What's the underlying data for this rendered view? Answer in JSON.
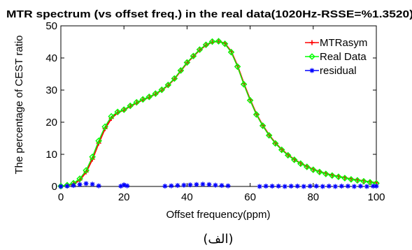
{
  "chart_data": {
    "type": "line",
    "title": "MTR spectrum (vs offset freq.) in the real data(1020Hz-RSSE=%1.3520)",
    "xlabel": "Offset frequency(ppm)",
    "ylabel": "The percentage of CEST ratio",
    "xlim": [
      0,
      100
    ],
    "ylim": [
      0,
      50
    ],
    "xticks": [
      0,
      20,
      40,
      60,
      80,
      100
    ],
    "yticks": [
      0,
      10,
      20,
      30,
      40,
      50
    ],
    "grid": false,
    "legend_position": "top-right",
    "series": [
      {
        "name": "MTRasym",
        "color": "#ff0000",
        "marker": "plus",
        "x": [
          0,
          2,
          4,
          6,
          8,
          10,
          12,
          14,
          16,
          18,
          20,
          22,
          24,
          26,
          28,
          30,
          32,
          34,
          36,
          38,
          40,
          42,
          44,
          46,
          48,
          50,
          52,
          54,
          56,
          58,
          60,
          62,
          64,
          66,
          68,
          70,
          72,
          74,
          76,
          78,
          80,
          82,
          84,
          86,
          88,
          90,
          92,
          94,
          96,
          98,
          100
        ],
        "y": [
          0.1,
          0.3,
          0.8,
          2.0,
          4.5,
          8.5,
          13.5,
          18.0,
          21.2,
          23.0,
          23.8,
          25.0,
          26.0,
          27.0,
          27.8,
          28.8,
          30.0,
          31.5,
          33.5,
          36.0,
          38.5,
          40.5,
          42.5,
          44.0,
          45.0,
          45.2,
          44.5,
          42.0,
          37.5,
          32.0,
          27.0,
          22.5,
          19.0,
          16.0,
          13.5,
          11.5,
          9.8,
          8.4,
          7.2,
          6.2,
          5.3,
          4.6,
          4.0,
          3.5,
          3.1,
          2.7,
          2.3,
          2.0,
          1.7,
          1.4,
          1.1
        ]
      },
      {
        "name": "Real Data",
        "color": "#00ff00",
        "marker": "diamond",
        "x": [
          0,
          2,
          4,
          6,
          8,
          10,
          12,
          14,
          16,
          18,
          20,
          22,
          24,
          26,
          28,
          30,
          32,
          34,
          36,
          38,
          40,
          42,
          44,
          46,
          48,
          50,
          52,
          54,
          56,
          58,
          60,
          62,
          64,
          66,
          68,
          70,
          72,
          74,
          76,
          78,
          80,
          82,
          84,
          86,
          88,
          90,
          92,
          94,
          96,
          98,
          100
        ],
        "y": [
          0.1,
          0.4,
          1.0,
          2.4,
          5.0,
          9.2,
          14.2,
          18.6,
          21.8,
          23.2,
          23.9,
          25.1,
          26.2,
          27.1,
          27.9,
          28.9,
          30.1,
          31.6,
          33.6,
          36.1,
          38.6,
          40.6,
          42.6,
          44.1,
          45.1,
          45.2,
          44.4,
          41.8,
          37.3,
          31.8,
          26.8,
          22.4,
          18.9,
          15.9,
          13.4,
          11.4,
          9.7,
          8.3,
          7.1,
          6.1,
          5.2,
          4.5,
          3.9,
          3.4,
          3.0,
          2.6,
          2.2,
          1.9,
          1.6,
          1.3,
          1.0
        ]
      },
      {
        "name": "residual",
        "color": "#0000ff",
        "marker": "star",
        "x": [
          0,
          2,
          4,
          6,
          8,
          10,
          12,
          19,
          20,
          21,
          33,
          35,
          37,
          39,
          41,
          43,
          45,
          47,
          49,
          51,
          53,
          63,
          65,
          67,
          69,
          71,
          73,
          75,
          77,
          79,
          81,
          83,
          85,
          87,
          89,
          91,
          93,
          95,
          97,
          99,
          100
        ],
        "y": [
          0.0,
          0.1,
          0.3,
          0.6,
          0.9,
          0.7,
          0.2,
          0.1,
          0.5,
          0.2,
          0.1,
          0.2,
          0.3,
          0.4,
          0.5,
          0.6,
          0.7,
          0.6,
          0.4,
          0.3,
          0.2,
          0.0,
          0.1,
          0.1,
          0.1,
          0.0,
          0.1,
          0.1,
          0.0,
          0.1,
          0.1,
          0.0,
          0.1,
          0.0,
          0.1,
          0.1,
          0.0,
          0.1,
          0.0,
          0.1,
          0.1
        ]
      }
    ]
  },
  "caption": "(الف)"
}
